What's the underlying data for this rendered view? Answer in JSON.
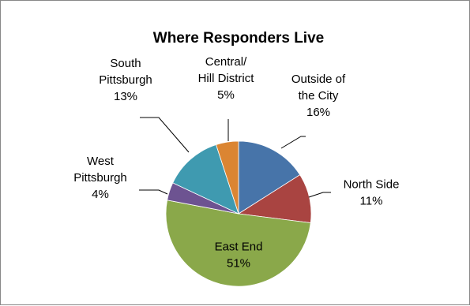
{
  "chart_data": {
    "type": "pie",
    "title": "Where Responders Live",
    "start_angle_deg": 0,
    "direction": "clockwise",
    "slices": [
      {
        "name": "Outside of the City",
        "label_lines": [
          "Outside of",
          "the City"
        ],
        "value": 16,
        "value_label": "16%",
        "color": "#4774A9"
      },
      {
        "name": "North Side",
        "label_lines": [
          "North Side"
        ],
        "value": 11,
        "value_label": "11%",
        "color": "#A94441"
      },
      {
        "name": "East End",
        "label_lines": [
          "East End"
        ],
        "value": 51,
        "value_label": "51%",
        "color": "#8AA84A"
      },
      {
        "name": "West Pittsburgh",
        "label_lines": [
          "West",
          "Pittsburgh"
        ],
        "value": 4,
        "value_label": "4%",
        "color": "#6D5391"
      },
      {
        "name": "South Pittsburgh",
        "label_lines": [
          "South",
          "Pittsburgh"
        ],
        "value": 13,
        "value_label": "13%",
        "color": "#3F9AB0"
      },
      {
        "name": "Central/ Hill District",
        "label_lines": [
          "Central/",
          "Hill District"
        ],
        "value": 5,
        "value_label": "5%",
        "color": "#DB8532"
      }
    ]
  }
}
